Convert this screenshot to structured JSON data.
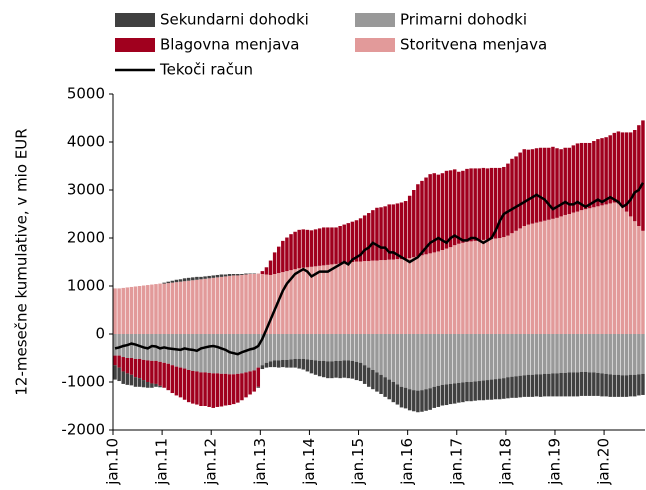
{
  "chart_data": {
    "type": "bar",
    "y_label": "12-mesečne kumulative, v mio EUR",
    "categories": [
      "jan.10",
      null,
      null,
      null,
      null,
      null,
      null,
      null,
      null,
      null,
      null,
      null,
      "jan.11",
      null,
      null,
      null,
      null,
      null,
      null,
      null,
      null,
      null,
      null,
      null,
      "jan.12",
      null,
      null,
      null,
      null,
      null,
      null,
      null,
      null,
      null,
      null,
      null,
      "jan.13",
      null,
      null,
      null,
      null,
      null,
      null,
      null,
      null,
      null,
      null,
      null,
      "jan.14",
      null,
      null,
      null,
      null,
      null,
      null,
      null,
      null,
      null,
      null,
      null,
      "jan.15",
      null,
      null,
      null,
      null,
      null,
      null,
      null,
      null,
      null,
      null,
      null,
      "jan.16",
      null,
      null,
      null,
      null,
      null,
      null,
      null,
      null,
      null,
      null,
      null,
      "jan.17",
      null,
      null,
      null,
      null,
      null,
      null,
      null,
      null,
      null,
      null,
      null,
      "jan.18",
      null,
      null,
      null,
      null,
      null,
      null,
      null,
      null,
      null,
      null,
      null,
      "jan.19",
      null,
      null,
      null,
      null,
      null,
      null,
      null,
      null,
      null,
      null,
      null,
      "jan.20",
      null,
      null,
      null,
      null,
      null,
      null,
      null,
      null,
      null
    ],
    "ylim": [
      -2000,
      5000
    ],
    "yticks": [
      -2000,
      -1000,
      0,
      1000,
      2000,
      3000,
      4000,
      5000
    ],
    "stacked": true,
    "series": [
      {
        "name": "Sekundarni dohodki",
        "color": "#404040",
        "values": [
          -300,
          -280,
          -260,
          -240,
          -220,
          -200,
          -180,
          -150,
          -120,
          -90,
          -60,
          -30,
          20,
          30,
          40,
          50,
          50,
          60,
          60,
          60,
          60,
          50,
          50,
          50,
          50,
          50,
          50,
          40,
          40,
          30,
          30,
          20,
          20,
          10,
          10,
          -20,
          -80,
          -100,
          -120,
          -140,
          -150,
          -150,
          -160,
          -170,
          -180,
          -200,
          -220,
          -250,
          -280,
          -300,
          -320,
          -340,
          -350,
          -350,
          -350,
          -360,
          -360,
          -370,
          -370,
          -380,
          -380,
          -390,
          -400,
          -400,
          -400,
          -400,
          -410,
          -410,
          -420,
          -420,
          -430,
          -430,
          -440,
          -440,
          -450,
          -450,
          -450,
          -450,
          -440,
          -440,
          -430,
          -430,
          -420,
          -420,
          -410,
          -410,
          -400,
          -400,
          -400,
          -400,
          -410,
          -410,
          -420,
          -420,
          -430,
          -430,
          -440,
          -440,
          -450,
          -450,
          -450,
          -460,
          -460,
          -460,
          -470,
          -470,
          -470,
          -480,
          -480,
          -490,
          -490,
          -500,
          -500,
          -500,
          -500,
          -500,
          -490,
          -490,
          -480,
          -480,
          -470,
          -470,
          -460,
          -460,
          -450,
          -450,
          -450,
          -450,
          -440,
          -440
        ]
      },
      {
        "name": "Primarni dohodki",
        "color": "#999999",
        "values": [
          -450,
          -450,
          -480,
          -500,
          -500,
          -520,
          -520,
          -540,
          -550,
          -560,
          -560,
          -580,
          -600,
          -620,
          -650,
          -680,
          -700,
          -720,
          -750,
          -770,
          -780,
          -800,
          -800,
          -810,
          -820,
          -820,
          -830,
          -830,
          -840,
          -840,
          -830,
          -820,
          -800,
          -780,
          -760,
          -700,
          -650,
          -600,
          -570,
          -550,
          -550,
          -540,
          -540,
          -530,
          -520,
          -520,
          -520,
          -530,
          -540,
          -550,
          -560,
          -560,
          -570,
          -570,
          -560,
          -560,
          -550,
          -550,
          -560,
          -580,
          -600,
          -650,
          -700,
          -750,
          -800,
          -850,
          -900,
          -950,
          -1000,
          -1050,
          -1100,
          -1120,
          -1150,
          -1170,
          -1180,
          -1170,
          -1150,
          -1130,
          -1100,
          -1080,
          -1060,
          -1050,
          -1040,
          -1030,
          -1020,
          -1010,
          -1000,
          -1000,
          -990,
          -980,
          -970,
          -960,
          -950,
          -940,
          -930,
          -920,
          -900,
          -890,
          -880,
          -870,
          -860,
          -850,
          -850,
          -840,
          -840,
          -830,
          -830,
          -820,
          -820,
          -810,
          -810,
          -800,
          -800,
          -800,
          -790,
          -790,
          -800,
          -800,
          -810,
          -820,
          -830,
          -840,
          -850,
          -850,
          -860,
          -860,
          -850,
          -850,
          -840,
          -830
        ]
      },
      {
        "name": "Blagovna menjava",
        "color": "#a0001e",
        "values": [
          -200,
          -250,
          -300,
          -320,
          -350,
          -380,
          -400,
          -420,
          -450,
          -470,
          -480,
          -500,
          -520,
          -550,
          -580,
          -600,
          -620,
          -650,
          -670,
          -680,
          -690,
          -700,
          -700,
          -710,
          -720,
          -700,
          -680,
          -660,
          -640,
          -620,
          -600,
          -560,
          -520,
          -480,
          -440,
          -400,
          60,
          150,
          300,
          450,
          550,
          650,
          700,
          750,
          780,
          800,
          800,
          780,
          760,
          770,
          780,
          790,
          780,
          770,
          760,
          780,
          800,
          820,
          840,
          860,
          900,
          950,
          1000,
          1050,
          1100,
          1100,
          1120,
          1150,
          1150,
          1160,
          1180,
          1200,
          1300,
          1400,
          1500,
          1550,
          1600,
          1650,
          1650,
          1600,
          1600,
          1620,
          1600,
          1580,
          1500,
          1500,
          1520,
          1520,
          1510,
          1500,
          1500,
          1480,
          1480,
          1470,
          1460,
          1460,
          1500,
          1550,
          1550,
          1580,
          1600,
          1560,
          1550,
          1550,
          1540,
          1520,
          1500,
          1500,
          1450,
          1400,
          1400,
          1380,
          1400,
          1420,
          1400,
          1380,
          1360,
          1380,
          1400,
          1400,
          1400,
          1420,
          1450,
          1500,
          1550,
          1650,
          1750,
          1900,
          2100,
          2300
        ]
      },
      {
        "name": "Storitvena menjava",
        "color": "#e29a9a",
        "values": [
          950,
          950,
          960,
          970,
          980,
          990,
          1000,
          1010,
          1020,
          1030,
          1040,
          1050,
          1050,
          1060,
          1070,
          1080,
          1090,
          1100,
          1110,
          1120,
          1130,
          1140,
          1150,
          1160,
          1170,
          1180,
          1190,
          1200,
          1210,
          1220,
          1220,
          1230,
          1240,
          1250,
          1250,
          1260,
          1250,
          1240,
          1230,
          1250,
          1270,
          1290,
          1310,
          1330,
          1350,
          1370,
          1380,
          1390,
          1400,
          1410,
          1420,
          1430,
          1440,
          1450,
          1460,
          1470,
          1480,
          1490,
          1500,
          1510,
          1510,
          1520,
          1520,
          1530,
          1530,
          1540,
          1540,
          1550,
          1550,
          1560,
          1560,
          1570,
          1580,
          1600,
          1620,
          1640,
          1660,
          1680,
          1700,
          1720,
          1750,
          1780,
          1810,
          1850,
          1880,
          1900,
          1920,
          1930,
          1940,
          1950,
          1960,
          1970,
          1980,
          1990,
          2000,
          2020,
          2050,
          2100,
          2150,
          2200,
          2250,
          2280,
          2300,
          2320,
          2340,
          2360,
          2380,
          2400,
          2420,
          2450,
          2480,
          2500,
          2530,
          2550,
          2580,
          2600,
          2620,
          2640,
          2660,
          2680,
          2700,
          2720,
          2740,
          2720,
          2650,
          2550,
          2450,
          2350,
          2250,
          2150
        ]
      },
      {
        "name": "Tekoči račun",
        "color": "#000000",
        "type": "line",
        "values": [
          -300,
          -280,
          -250,
          -230,
          -200,
          -220,
          -250,
          -280,
          -300,
          -250,
          -260,
          -300,
          -280,
          -300,
          -310,
          -320,
          -330,
          -300,
          -320,
          -330,
          -350,
          -300,
          -280,
          -260,
          -250,
          -270,
          -300,
          -330,
          -380,
          -400,
          -420,
          -380,
          -350,
          -320,
          -300,
          -250,
          -100,
          100,
          300,
          500,
          700,
          900,
          1050,
          1150,
          1250,
          1300,
          1350,
          1300,
          1200,
          1250,
          1300,
          1300,
          1300,
          1350,
          1400,
          1450,
          1500,
          1450,
          1550,
          1600,
          1650,
          1750,
          1800,
          1900,
          1850,
          1800,
          1800,
          1700,
          1700,
          1650,
          1600,
          1550,
          1500,
          1550,
          1600,
          1700,
          1800,
          1900,
          1950,
          2000,
          1950,
          1900,
          2000,
          2050,
          2000,
          1950,
          1950,
          2000,
          2000,
          1950,
          1900,
          1950,
          2000,
          2150,
          2350,
          2500,
          2550,
          2600,
          2650,
          2700,
          2750,
          2800,
          2850,
          2900,
          2850,
          2800,
          2700,
          2600,
          2650,
          2700,
          2750,
          2700,
          2700,
          2750,
          2700,
          2650,
          2700,
          2750,
          2800,
          2750,
          2800,
          2850,
          2800,
          2750,
          2650,
          2700,
          2800,
          2950,
          3000,
          3150
        ]
      }
    ]
  }
}
